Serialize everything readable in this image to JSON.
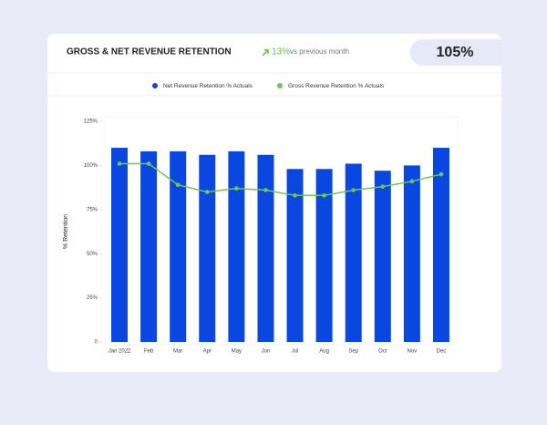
{
  "header": {
    "title": "GROSS & NET REVENUE RETENTION",
    "change": "13%",
    "change_text": "vs previous month",
    "kpi": "105%"
  },
  "chart_data": {
    "type": "bar_line",
    "categories": [
      "Jan 2022",
      "Feb",
      "Mar",
      "Apr",
      "May",
      "Jun",
      "Jul",
      "Aug",
      "Sep",
      "Oct",
      "Nov",
      "Dec"
    ],
    "series": [
      {
        "name": "Net Revenue Retention % Actuals",
        "color": "#0a47e0",
        "type": "bar",
        "values": [
          110,
          108,
          108,
          106,
          108,
          106,
          98,
          98,
          101,
          97,
          100,
          110
        ]
      },
      {
        "name": "Gross Revenue Retention % Actuals",
        "color": "#6cc94a",
        "type": "line",
        "values": [
          101,
          101,
          89,
          85,
          87,
          86,
          83,
          83,
          86,
          88,
          91,
          95
        ]
      }
    ],
    "y_label": "% Retention",
    "ylim": [
      0,
      125
    ],
    "yticks": [
      0,
      {
        "value": 25,
        "label": "25%"
      },
      {
        "value": 50,
        "label": "50%"
      },
      {
        "value": 75,
        "label": "75%"
      },
      {
        "value": 100,
        "label": "100%"
      },
      {
        "value": 125,
        "label": "125%"
      }
    ]
  }
}
